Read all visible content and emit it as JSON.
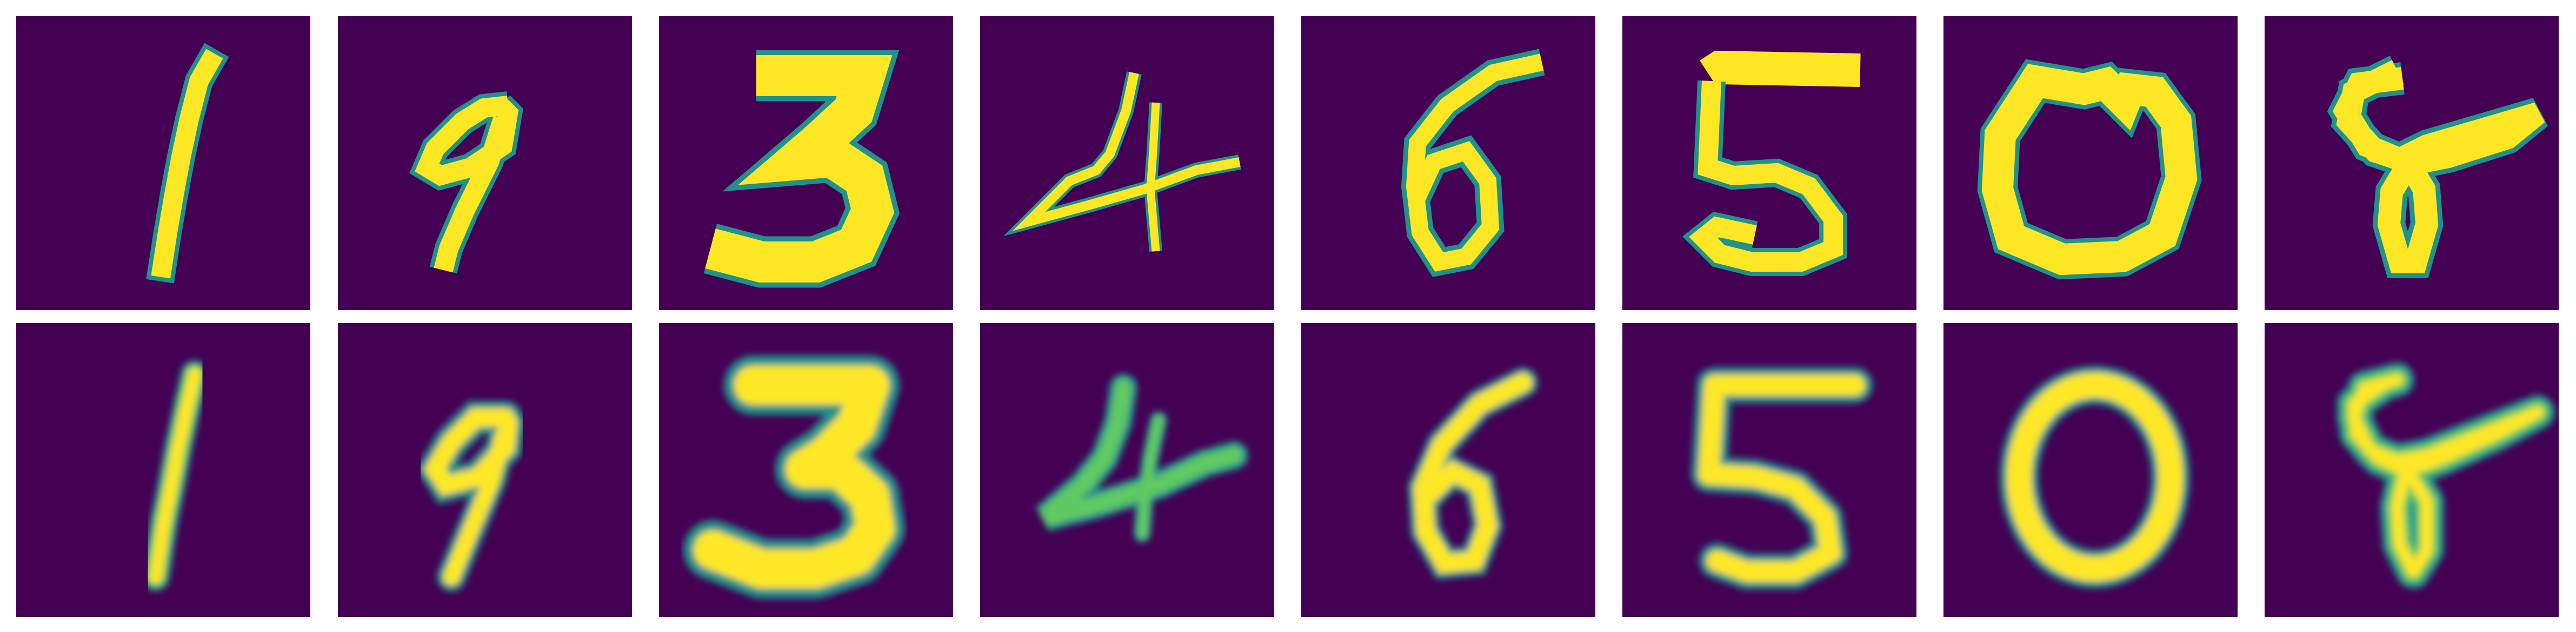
{
  "figure": {
    "background_color": "#ffffff",
    "colormap": "viridis",
    "colors": {
      "tile_background": "#440154",
      "low": "#3b528b",
      "mid": "#21918c",
      "high": "#5ec962",
      "peak": "#fde725"
    },
    "rows": [
      {
        "row_role": "original",
        "digits": [
          "1",
          "9",
          "3",
          "4",
          "6",
          "5",
          "0",
          "8"
        ]
      },
      {
        "row_role": "reconstruction",
        "digits": [
          "1",
          "9",
          "3",
          "4",
          "6",
          "5",
          "0",
          "8"
        ]
      }
    ]
  }
}
